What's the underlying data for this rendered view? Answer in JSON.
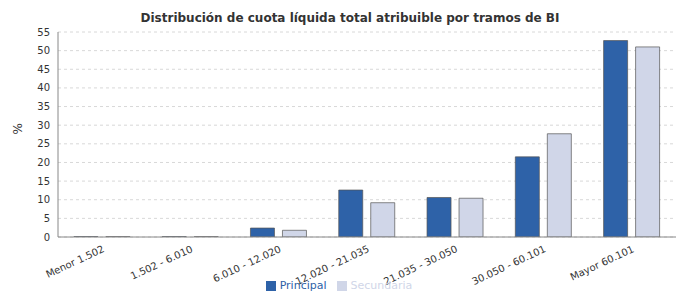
{
  "chart_data": {
    "type": "bar",
    "title": "Distribución de cuota líquida total atribuible por tramos de BI",
    "y_label": "%",
    "categories": [
      "Menor 1.502",
      "1.502 - 6.010",
      "6.010 - 12.020",
      "12.020 - 21.035",
      "21.035 - 30.050",
      "30.050 - 60.101",
      "Mayor 60.101"
    ],
    "series": [
      {
        "name": "Principal",
        "color": "#2e62a8",
        "values": [
          0.1,
          0.1,
          2.4,
          12.6,
          10.6,
          21.5,
          52.7
        ]
      },
      {
        "name": "Secundaria",
        "color": "#d0d6e8",
        "values": [
          0.1,
          0.1,
          1.8,
          9.2,
          10.4,
          27.7,
          51.0
        ]
      }
    ],
    "ylim": [
      0,
      55
    ],
    "yticks": [
      0,
      5,
      10,
      15,
      20,
      25,
      30,
      35,
      40,
      45,
      50,
      55
    ],
    "grid": true,
    "legend": "bottom"
  }
}
